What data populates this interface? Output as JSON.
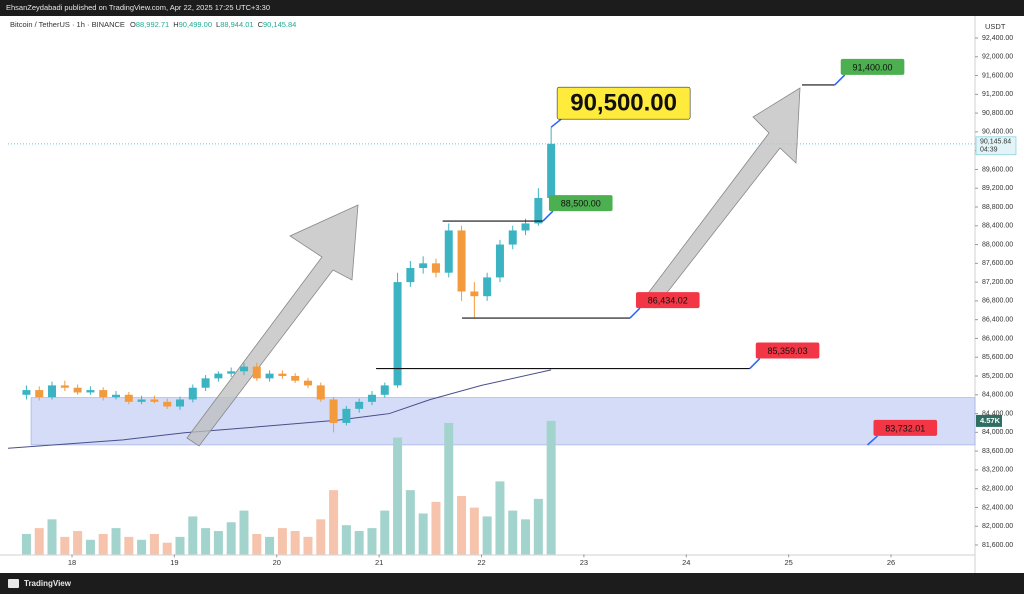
{
  "header": {
    "publisher": "EhsanZeydabadi published on TradingView.com, Apr 22, 2025 17:25 UTC+3:30",
    "brand": "TradingView"
  },
  "chart_data": {
    "type": "candlestick",
    "symbol": "Bitcoin / TetherUS · 1h · BINANCE",
    "ohlc_legend": [
      {
        "key": "O",
        "value": "88,992.71"
      },
      {
        "key": "H",
        "value": "90,499.00"
      },
      {
        "key": "L",
        "value": "88,944.01"
      },
      {
        "key": "C",
        "value": "90,145.84"
      }
    ],
    "currency": "USDT",
    "last_price_label": "90,145.84",
    "countdown": "04:39",
    "last_volume_label": "4.57K",
    "up_color": "#3bb3c3",
    "down_color": "#f39a3c",
    "volume_up_color": "#a3d3cd",
    "volume_down_color": "#f6c3ac",
    "x": [
      17.555,
      17.68,
      17.805,
      17.93,
      18.055,
      18.18,
      18.305,
      18.43,
      18.555,
      18.68,
      18.805,
      18.93,
      19.055,
      19.18,
      19.305,
      19.43,
      19.555,
      19.68,
      19.805,
      19.93,
      20.055,
      20.18,
      20.305,
      20.43,
      20.555,
      20.68,
      20.805,
      20.93,
      21.055,
      21.18,
      21.305,
      21.43,
      21.555,
      21.68,
      21.805,
      21.93,
      22.055,
      22.18,
      22.305,
      22.43,
      22.555,
      22.68
    ],
    "open": [
      84800,
      84900,
      84750,
      85000,
      84950,
      84850,
      84900,
      84750,
      84800,
      84650,
      84700,
      84650,
      84550,
      84700,
      84950,
      85150,
      85250,
      85300,
      85400,
      85150,
      85250,
      85200,
      85100,
      85000,
      84700,
      84200,
      84500,
      84650,
      84800,
      85000,
      87200,
      87500,
      87600,
      87400,
      88300,
      87000,
      86900,
      87300,
      88000,
      88300,
      88450,
      88992.71
    ],
    "high": [
      85000,
      84980,
      85080,
      85100,
      85020,
      84980,
      84960,
      84880,
      84860,
      84780,
      84780,
      84720,
      84760,
      85020,
      85220,
      85300,
      85380,
      85480,
      85480,
      85320,
      85320,
      85260,
      85160,
      85060,
      84750,
      84560,
      84720,
      84880,
      85060,
      87400,
      87650,
      87750,
      87700,
      88450,
      88400,
      87200,
      87400,
      88100,
      88400,
      88550,
      89200,
      90499
    ],
    "low": [
      84700,
      84680,
      84700,
      84880,
      84800,
      84800,
      84680,
      84700,
      84600,
      84600,
      84620,
      84500,
      84480,
      84640,
      84880,
      85080,
      85180,
      85220,
      85100,
      85080,
      85140,
      85050,
      84940,
      84650,
      84000,
      84150,
      84420,
      84580,
      84740,
      84950,
      87100,
      87380,
      87300,
      87300,
      86800,
      86450,
      86800,
      87200,
      87900,
      88200,
      88400,
      88944.01
    ],
    "close": [
      84900,
      84750,
      85000,
      84950,
      84850,
      84900,
      84750,
      84800,
      84650,
      84700,
      84650,
      84550,
      84700,
      84950,
      85150,
      85250,
      85300,
      85400,
      85150,
      85250,
      85200,
      85100,
      85000,
      84700,
      84200,
      84500,
      84650,
      84800,
      85000,
      87200,
      87500,
      87600,
      87400,
      88300,
      87000,
      86900,
      87300,
      88000,
      88300,
      88450,
      88992.71,
      90145.84
    ],
    "volume": [
      700,
      900,
      1200,
      600,
      800,
      500,
      700,
      900,
      600,
      500,
      700,
      400,
      600,
      1300,
      900,
      800,
      1100,
      1500,
      700,
      600,
      900,
      800,
      600,
      1200,
      2200,
      1000,
      800,
      900,
      1500,
      4000,
      2200,
      1400,
      1800,
      4500,
      2000,
      1600,
      1300,
      2500,
      1500,
      1200,
      1900,
      4570
    ],
    "moving_average": {
      "x": [
        17.375,
        18.5,
        19.1,
        20.0,
        20.6,
        21.1,
        21.5,
        22.0,
        22.68
      ],
      "values": [
        83660,
        83840,
        83990,
        84150,
        84260,
        84400,
        84700,
        85000,
        85330
      ],
      "color": "#4a4f8c"
    },
    "annotations": [
      {
        "label": "90,500.00",
        "value": 90500,
        "x": [
          22.68,
          22.68
        ],
        "color": "#ffeb3b",
        "big": true
      },
      {
        "label": "88,500.00",
        "value": 88500,
        "x": [
          21.62,
          22.6
        ],
        "color": "#4caf50"
      },
      {
        "label": "91,400.00",
        "value": 91400,
        "x": [
          25.13,
          25.45
        ],
        "color": "#4caf50"
      },
      {
        "label": "86,434.02",
        "value": 86434.02,
        "x": [
          21.81,
          23.45
        ],
        "color": "#f23645"
      },
      {
        "label": "85,359.03",
        "value": 85359.03,
        "x": [
          20.97,
          24.62
        ],
        "color": "#f23645"
      },
      {
        "label": "83,732.01",
        "value": 83732.01,
        "x": [
          17.6,
          25.77
        ],
        "color": "#f23645",
        "zone_top": 84740,
        "zone_color": "#c9d3f5"
      }
    ],
    "xlim": [
      17.375,
      26.82
    ],
    "xticks": [
      18,
      19,
      20,
      21,
      22,
      23,
      24,
      25,
      26
    ],
    "ylim": [
      81400,
      92600
    ],
    "yticks": [
      {
        "value": 81600,
        "label": "81,600.00"
      },
      {
        "value": 82000,
        "label": "82,000.00"
      },
      {
        "value": 82400,
        "label": "82,400.00"
      },
      {
        "value": 82800,
        "label": "82,800.00"
      },
      {
        "value": 83200,
        "label": "83,200.00"
      },
      {
        "value": 83600,
        "label": "83,600.00"
      },
      {
        "value": 84000,
        "label": "84,000.00"
      },
      {
        "value": 84400,
        "label": "84,400.00"
      },
      {
        "value": 84800,
        "label": "84,800.00"
      },
      {
        "value": 85200,
        "label": "85,200.00"
      },
      {
        "value": 85600,
        "label": "85,600.00"
      },
      {
        "value": 86000,
        "label": "86,000.00"
      },
      {
        "value": 86400,
        "label": "86,400.00"
      },
      {
        "value": 86800,
        "label": "86,800.00"
      },
      {
        "value": 87200,
        "label": "87,200.00"
      },
      {
        "value": 87600,
        "label": "87,600.00"
      },
      {
        "value": 88000,
        "label": "88,000.00"
      },
      {
        "value": 88400,
        "label": "88,400.00"
      },
      {
        "value": 88800,
        "label": "88,800.00"
      },
      {
        "value": 89200,
        "label": "89,200.00"
      },
      {
        "value": 89600,
        "label": "89,600.00"
      },
      {
        "value": 90000,
        "label": "90,000.00"
      },
      {
        "value": 90400,
        "label": "90,400.00"
      },
      {
        "value": 90800,
        "label": "90,800.00"
      },
      {
        "value": 91200,
        "label": "91,200.00"
      },
      {
        "value": 91600,
        "label": "91,600.00"
      },
      {
        "value": 92000,
        "label": "92,000.00"
      },
      {
        "value": 92400,
        "label": "92,400.00"
      }
    ],
    "y2lim": [
      0,
      18000
    ]
  }
}
